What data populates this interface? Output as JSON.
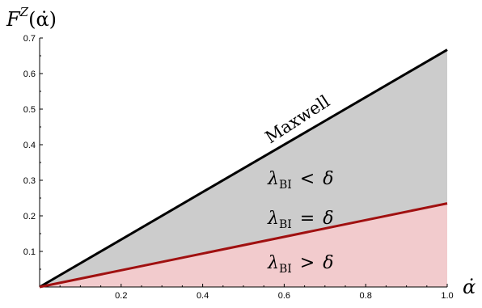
{
  "chart_data": {
    "type": "area",
    "xlabel": "α̇",
    "ylabel": {
      "base": "F",
      "sup": "Z",
      "arg": "(α̇)"
    },
    "xlim": [
      0,
      1
    ],
    "ylim": [
      0,
      0.7
    ],
    "xticks": [
      0.2,
      0.4,
      0.6,
      0.8,
      1.0
    ],
    "xtick_labels": [
      "0.2",
      "0.4",
      "0.6",
      "0.8",
      "1.0"
    ],
    "yticks": [
      0.1,
      0.2,
      0.3,
      0.4,
      0.5,
      0.6,
      0.7
    ],
    "ytick_labels": [
      "0.1",
      "0.2",
      "0.3",
      "0.4",
      "0.5",
      "0.6",
      "0.7"
    ],
    "grid": false,
    "series": [
      {
        "name": "Maxwell",
        "x": [
          0,
          1
        ],
        "y": [
          0,
          0.667
        ],
        "color": "#000000"
      },
      {
        "name": "λ_BI = δ",
        "x": [
          0,
          1
        ],
        "y": [
          0,
          0.235
        ],
        "color": "#a01010"
      }
    ],
    "fills": [
      {
        "between": [
          "λ_BI = δ",
          "Maxwell"
        ],
        "color": "#cccccc"
      },
      {
        "between": [
          "axis",
          "λ_BI = δ"
        ],
        "color": "#f2cbcd"
      }
    ],
    "annotations": {
      "maxwell": "Maxwell",
      "region_lt": {
        "sym": "λ",
        "sub": "BI",
        "rel": "<",
        "rhs": "δ"
      },
      "region_eq": {
        "sym": "λ",
        "sub": "BI",
        "rel": "=",
        "rhs": "δ"
      },
      "region_gt": {
        "sym": "λ",
        "sub": "BI",
        "rel": ">",
        "rhs": "δ"
      }
    }
  }
}
